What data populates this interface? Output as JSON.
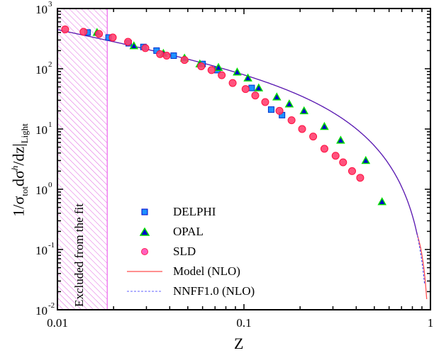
{
  "chart_data": {
    "type": "scatter",
    "title": "",
    "xlabel": "Z",
    "ylabel": "1/σ_tot dσ^h/dz|_Light",
    "xscale": "log",
    "yscale": "log",
    "xlim": [
      0.01,
      1
    ],
    "ylim": [
      0.01,
      1000
    ],
    "x_ticks": [
      "0.01",
      "0.1",
      "1"
    ],
    "y_ticks": [
      "10^-2",
      "10^-1",
      "10^0",
      "10^1",
      "10^2",
      "10^3"
    ],
    "grid": false,
    "legend_position": "lower-center",
    "shaded_region": {
      "x_from": 0.01,
      "x_to": 0.0185,
      "label": "Excluded from the fit",
      "color": "#e040e0"
    },
    "series": [
      {
        "name": "DELPHI",
        "marker": "square",
        "color": "#1e90ff",
        "x": [
          0.0145,
          0.0188,
          0.0241,
          0.0289,
          0.034,
          0.042,
          0.06,
          0.072,
          0.11,
          0.14,
          0.16
        ],
        "y": [
          400,
          330,
          265,
          230,
          200,
          165,
          120,
          95,
          48,
          21,
          17
        ]
      },
      {
        "name": "OPAL",
        "marker": "triangle",
        "color": "#00cc00",
        "x": [
          0.0163,
          0.0257,
          0.037,
          0.048,
          0.058,
          0.073,
          0.092,
          0.105,
          0.12,
          0.15,
          0.175,
          0.21,
          0.27,
          0.33,
          0.45,
          0.55
        ],
        "y": [
          400,
          240,
          180,
          150,
          120,
          105,
          88,
          70,
          48,
          34,
          26,
          20,
          11,
          6.5,
          3.0,
          0.62
        ]
      },
      {
        "name": "SLD",
        "marker": "circle",
        "color": "#ff3060",
        "x": [
          0.011,
          0.0138,
          0.0167,
          0.0198,
          0.0239,
          0.0296,
          0.0355,
          0.0385,
          0.048,
          0.059,
          0.067,
          0.076,
          0.087,
          0.102,
          0.115,
          0.13,
          0.155,
          0.18,
          0.205,
          0.235,
          0.27,
          0.31,
          0.34,
          0.38,
          0.42
        ],
        "y": [
          450,
          410,
          380,
          330,
          280,
          220,
          175,
          165,
          140,
          110,
          95,
          78,
          58,
          46,
          36,
          28,
          20,
          14,
          10,
          7.5,
          4.7,
          3.6,
          2.8,
          2.0,
          1.55
        ]
      }
    ],
    "curves": [
      {
        "name": "Model (NLO)",
        "style": "solid",
        "color": "#ff7070"
      },
      {
        "name": "NNFF1.0 (NLO)",
        "style": "dashed",
        "color": "#4040ff"
      }
    ]
  },
  "axis": {
    "xlabel": "Z",
    "ylabel_main": "1/σ",
    "ylabel_sub1": "tot",
    "ylabel_mid": "dσ",
    "ylabel_sup": "h",
    "ylabel_tail": "/dz|",
    "ylabel_sub2": "Light"
  },
  "annotation": "Excluded from the fit",
  "legend": {
    "items": [
      "DELPHI",
      "OPAL",
      "SLD",
      "Model (NLO)",
      "NNFF1.0 (NLO)"
    ]
  }
}
